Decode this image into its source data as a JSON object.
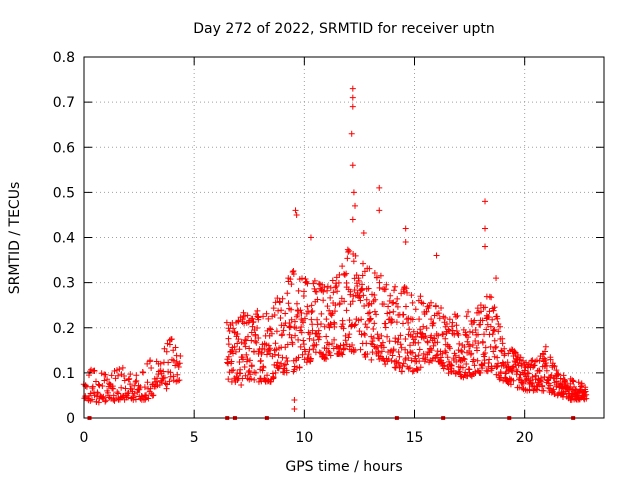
{
  "chart_data": {
    "type": "scatter",
    "title": "Day 272 of 2022, SRMTID for receiver uptn",
    "xlabel": "GPS time / hours",
    "ylabel": "SRMTID / TECUs",
    "xlim": [
      0,
      23.6
    ],
    "ylim": [
      0,
      0.8
    ],
    "grid": true,
    "xticks": [
      0,
      5,
      10,
      15,
      20
    ],
    "yticks": [
      0,
      0.1,
      0.2,
      0.3,
      0.4,
      0.5,
      0.6,
      0.7,
      0.8
    ],
    "marker": "+",
    "color": "#ff0000",
    "series": [
      {
        "name": "SRMTID",
        "note": "dense per-epoch samples; envelope (x in hours, [lower, upper] in TECU) from which points are sampled",
        "envelope": [
          [
            0.0,
            0.04,
            0.09
          ],
          [
            0.5,
            0.03,
            0.12
          ],
          [
            1.0,
            0.03,
            0.11
          ],
          [
            1.5,
            0.04,
            0.12
          ],
          [
            2.0,
            0.04,
            0.11
          ],
          [
            2.5,
            0.04,
            0.11
          ],
          [
            3.0,
            0.04,
            0.13
          ],
          [
            3.5,
            0.06,
            0.15
          ],
          [
            4.0,
            0.07,
            0.18
          ],
          [
            4.4,
            0.08,
            0.16
          ]
        ],
        "envelope2": [
          [
            6.5,
            0.08,
            0.22
          ],
          [
            7.0,
            0.07,
            0.24
          ],
          [
            7.5,
            0.08,
            0.23
          ],
          [
            8.0,
            0.08,
            0.25
          ],
          [
            8.5,
            0.08,
            0.26
          ],
          [
            9.0,
            0.1,
            0.28
          ],
          [
            9.5,
            0.1,
            0.34
          ],
          [
            10.0,
            0.12,
            0.33
          ],
          [
            10.5,
            0.13,
            0.31
          ],
          [
            11.0,
            0.13,
            0.3
          ],
          [
            11.5,
            0.14,
            0.34
          ],
          [
            12.0,
            0.14,
            0.38
          ],
          [
            12.5,
            0.14,
            0.35
          ],
          [
            13.0,
            0.13,
            0.33
          ],
          [
            13.5,
            0.12,
            0.32
          ],
          [
            14.0,
            0.11,
            0.3
          ],
          [
            14.5,
            0.1,
            0.3
          ],
          [
            15.0,
            0.1,
            0.28
          ],
          [
            15.5,
            0.12,
            0.27
          ],
          [
            16.0,
            0.13,
            0.25
          ],
          [
            16.5,
            0.1,
            0.24
          ],
          [
            17.0,
            0.09,
            0.23
          ],
          [
            17.5,
            0.09,
            0.24
          ],
          [
            18.0,
            0.1,
            0.26
          ],
          [
            18.5,
            0.1,
            0.28
          ],
          [
            19.0,
            0.08,
            0.18
          ],
          [
            19.5,
            0.07,
            0.15
          ],
          [
            20.0,
            0.06,
            0.13
          ],
          [
            20.5,
            0.06,
            0.13
          ],
          [
            21.0,
            0.06,
            0.16
          ],
          [
            21.5,
            0.05,
            0.1
          ],
          [
            22.0,
            0.04,
            0.09
          ],
          [
            22.5,
            0.04,
            0.08
          ],
          [
            22.8,
            0.04,
            0.08
          ]
        ],
        "spikes": [
          [
            12.2,
            0.73
          ],
          [
            12.2,
            0.71
          ],
          [
            12.2,
            0.69
          ],
          [
            12.15,
            0.63
          ],
          [
            12.2,
            0.56
          ],
          [
            12.25,
            0.5
          ],
          [
            12.3,
            0.47
          ],
          [
            12.2,
            0.44
          ],
          [
            13.4,
            0.51
          ],
          [
            13.4,
            0.46
          ],
          [
            18.2,
            0.48
          ],
          [
            18.2,
            0.42
          ],
          [
            18.2,
            0.38
          ],
          [
            9.6,
            0.46
          ],
          [
            9.65,
            0.45
          ],
          [
            14.6,
            0.42
          ],
          [
            14.6,
            0.39
          ],
          [
            9.55,
            0.04
          ],
          [
            9.55,
            0.02
          ],
          [
            12.7,
            0.41
          ],
          [
            16.0,
            0.36
          ],
          [
            18.7,
            0.31
          ],
          [
            10.3,
            0.4
          ]
        ],
        "zero_marks": [
          0.25,
          6.5,
          6.85,
          8.3,
          14.2,
          16.3,
          19.3,
          22.2
        ]
      }
    ]
  }
}
